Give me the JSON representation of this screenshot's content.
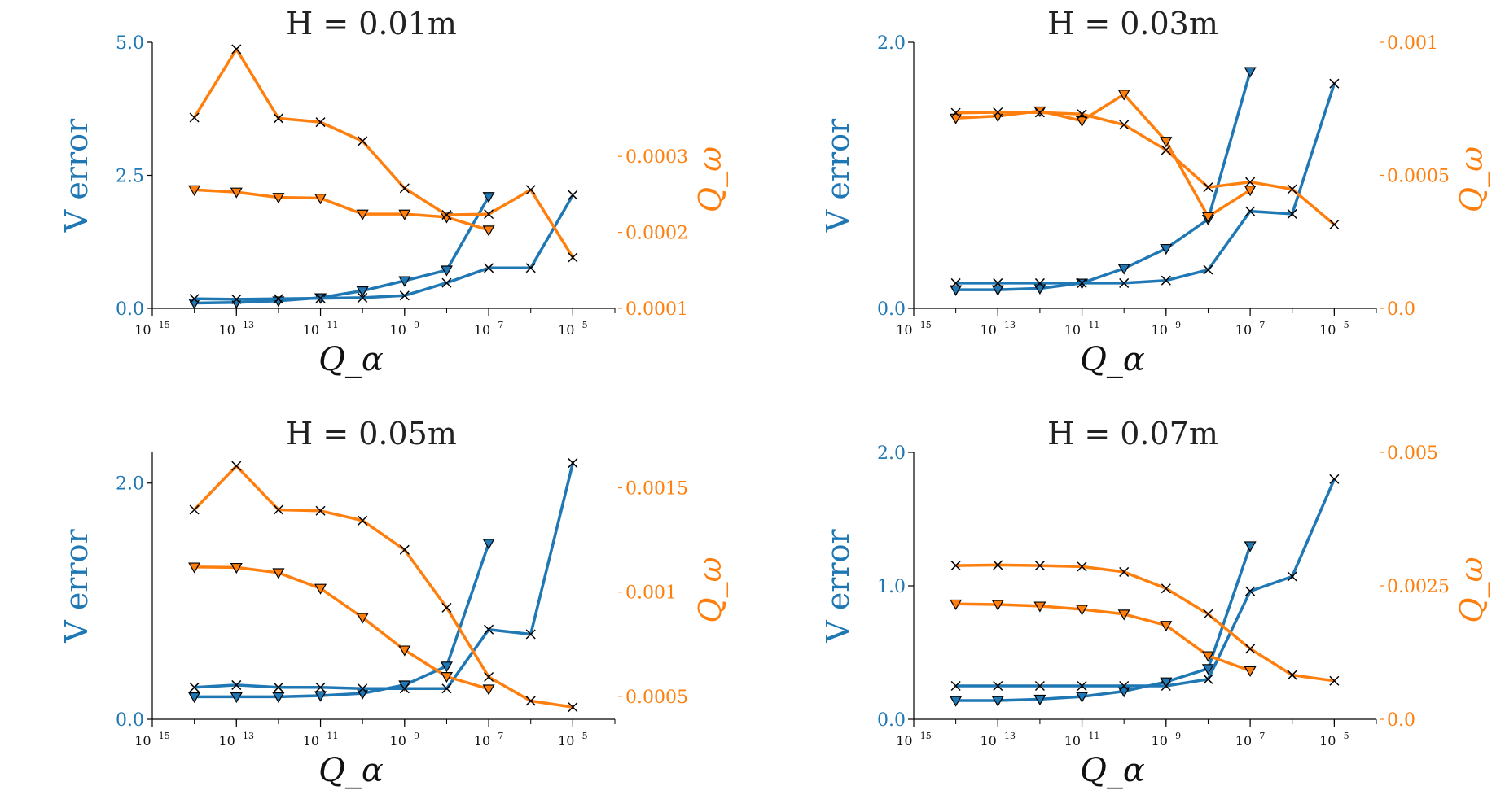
{
  "colors": {
    "left_axis": "#1f77b4",
    "right_axis": "#ff7f0e",
    "marker_edge": "#000000"
  },
  "chart_data": [
    {
      "type": "line",
      "title": "H = 0.01m",
      "xlabel": "Q_α",
      "ylabel": "V error",
      "ylabel_right": "Q_ω",
      "xscale": "log",
      "xlim": [
        1e-15,
        0.0001
      ],
      "xticks": [
        {
          "base": "10",
          "exp": "−15"
        },
        {
          "base": "10",
          "exp": "−13"
        },
        {
          "base": "10",
          "exp": "−11"
        },
        {
          "base": "10",
          "exp": "−9"
        },
        {
          "base": "10",
          "exp": "−7"
        },
        {
          "base": "10",
          "exp": "−5"
        }
      ],
      "ylim": [
        0,
        5.0
      ],
      "yticks": [
        "0.0",
        "2.5",
        "5.0"
      ],
      "ylim_right": [
        0.0001,
        0.00045
      ],
      "yticks_right": [
        "0.0001",
        "0.0002",
        "0.0003"
      ],
      "series": [
        {
          "axis": "left",
          "marker": "triangle",
          "x": [
            1e-14,
            1e-13,
            1e-12,
            1e-11,
            1e-10,
            1e-09,
            1e-08,
            1e-07
          ],
          "y": [
            0.1,
            0.11,
            0.14,
            0.2,
            0.33,
            0.52,
            0.72,
            2.1
          ]
        },
        {
          "axis": "left",
          "marker": "x",
          "x": [
            1e-14,
            1e-13,
            1e-12,
            1e-11,
            1e-10,
            1e-09,
            1e-08,
            1e-07,
            1e-06,
            1e-05
          ],
          "y": [
            0.18,
            0.17,
            0.18,
            0.19,
            0.2,
            0.24,
            0.48,
            0.76,
            0.76,
            2.13
          ]
        },
        {
          "axis": "right",
          "marker": "triangle",
          "x": [
            1e-14,
            1e-13,
            1e-12,
            1e-11,
            1e-10,
            1e-09,
            1e-08,
            1e-07
          ],
          "y": [
            0.000256,
            0.000253,
            0.000246,
            0.000245,
            0.000224,
            0.000224,
            0.00022,
            0.000203
          ]
        },
        {
          "axis": "right",
          "marker": "x",
          "x": [
            1e-14,
            1e-13,
            1e-12,
            1e-11,
            1e-10,
            1e-09,
            1e-08,
            1e-07,
            1e-06,
            1e-05
          ],
          "y": [
            0.000351,
            0.000441,
            0.00035,
            0.000345,
            0.00032,
            0.000258,
            0.000223,
            0.000224,
            0.000256,
            0.000167
          ]
        }
      ]
    },
    {
      "type": "line",
      "title": "H = 0.03m",
      "xlabel": "Q_α",
      "ylabel": "V error",
      "ylabel_right": "Q_ω",
      "xscale": "log",
      "xlim": [
        1e-15,
        0.0001
      ],
      "xticks": [
        {
          "base": "10",
          "exp": "−15"
        },
        {
          "base": "10",
          "exp": "−13"
        },
        {
          "base": "10",
          "exp": "−11"
        },
        {
          "base": "10",
          "exp": "−9"
        },
        {
          "base": "10",
          "exp": "−7"
        },
        {
          "base": "10",
          "exp": "−5"
        }
      ],
      "ylim": [
        0,
        2.0
      ],
      "yticks": [
        "0.0",
        "2.0"
      ],
      "ylim_right": [
        0,
        0.001
      ],
      "yticks_right": [
        "0.0",
        "0.0005",
        "0.001"
      ],
      "series": [
        {
          "axis": "left",
          "marker": "triangle",
          "x": [
            1e-14,
            1e-13,
            1e-12,
            1e-11,
            1e-10,
            1e-09,
            1e-08,
            1e-07
          ],
          "y": [
            0.14,
            0.14,
            0.15,
            0.19,
            0.3,
            0.45,
            0.67,
            1.78
          ]
        },
        {
          "axis": "left",
          "marker": "x",
          "x": [
            1e-14,
            1e-13,
            1e-12,
            1e-11,
            1e-10,
            1e-09,
            1e-08,
            1e-07,
            1e-06,
            1e-05
          ],
          "y": [
            0.19,
            0.19,
            0.19,
            0.19,
            0.19,
            0.21,
            0.29,
            0.73,
            0.71,
            1.69
          ]
        },
        {
          "axis": "right",
          "marker": "triangle",
          "x": [
            1e-14,
            1e-13,
            1e-12,
            1e-11,
            1e-10,
            1e-09,
            1e-08,
            1e-07
          ],
          "y": [
            0.000715,
            0.000723,
            0.000742,
            0.000705,
            0.000805,
            0.000628,
            0.000345,
            0.000445
          ]
        },
        {
          "axis": "right",
          "marker": "x",
          "x": [
            1e-14,
            1e-13,
            1e-12,
            1e-11,
            1e-10,
            1e-09,
            1e-08,
            1e-07,
            1e-06,
            1e-05
          ],
          "y": [
            0.000735,
            0.000737,
            0.000736,
            0.00073,
            0.00069,
            0.000595,
            0.000455,
            0.000475,
            0.000448,
            0.000315
          ]
        }
      ]
    },
    {
      "type": "line",
      "title": "H = 0.05m",
      "xlabel": "Q_α",
      "ylabel": "V error",
      "ylabel_right": "Q_ω",
      "xscale": "log",
      "xlim": [
        1e-15,
        0.0001
      ],
      "xticks": [
        {
          "base": "10",
          "exp": "−15"
        },
        {
          "base": "10",
          "exp": "−13"
        },
        {
          "base": "10",
          "exp": "−11"
        },
        {
          "base": "10",
          "exp": "−9"
        },
        {
          "base": "10",
          "exp": "−7"
        },
        {
          "base": "10",
          "exp": "−5"
        }
      ],
      "ylim": [
        0,
        2.26
      ],
      "yticks": [
        "0.0",
        "2.0"
      ],
      "ylim_right": [
        0.00039,
        0.00167
      ],
      "yticks_right": [
        "0.0005",
        "0.001",
        "0.0015"
      ],
      "series": [
        {
          "axis": "left",
          "marker": "triangle",
          "x": [
            1e-14,
            1e-13,
            1e-12,
            1e-11,
            1e-10,
            1e-09,
            1e-08,
            1e-07
          ],
          "y": [
            0.19,
            0.19,
            0.19,
            0.2,
            0.22,
            0.29,
            0.45,
            1.49
          ]
        },
        {
          "axis": "left",
          "marker": "x",
          "x": [
            1e-14,
            1e-13,
            1e-12,
            1e-11,
            1e-10,
            1e-09,
            1e-08,
            1e-07,
            1e-06,
            1e-05
          ],
          "y": [
            0.27,
            0.29,
            0.27,
            0.27,
            0.26,
            0.26,
            0.26,
            0.76,
            0.72,
            2.17
          ]
        },
        {
          "axis": "right",
          "marker": "triangle",
          "x": [
            1e-14,
            1e-13,
            1e-12,
            1e-11,
            1e-10,
            1e-09,
            1e-08,
            1e-07
          ],
          "y": [
            0.00112,
            0.001118,
            0.001093,
            0.001018,
            0.000878,
            0.000722,
            0.000595,
            0.000535
          ]
        },
        {
          "axis": "right",
          "marker": "x",
          "x": [
            1e-14,
            1e-13,
            1e-12,
            1e-11,
            1e-10,
            1e-09,
            1e-08,
            1e-07,
            1e-06,
            1e-05
          ],
          "y": [
            0.001395,
            0.001605,
            0.001395,
            0.00139,
            0.001343,
            0.001203,
            0.000925,
            0.000593,
            0.000478,
            0.000448
          ]
        }
      ]
    },
    {
      "type": "line",
      "title": "H = 0.07m",
      "xlabel": "Q_α",
      "ylabel": "V error",
      "ylabel_right": "Q_ω",
      "xscale": "log",
      "xlim": [
        1e-15,
        0.0001
      ],
      "xticks": [
        {
          "base": "10",
          "exp": "−15"
        },
        {
          "base": "10",
          "exp": "−13"
        },
        {
          "base": "10",
          "exp": "−11"
        },
        {
          "base": "10",
          "exp": "−9"
        },
        {
          "base": "10",
          "exp": "−7"
        },
        {
          "base": "10",
          "exp": "−5"
        }
      ],
      "ylim": [
        0,
        2.0
      ],
      "yticks": [
        "0.0",
        "1.0",
        "2.0"
      ],
      "ylim_right": [
        0,
        0.005
      ],
      "yticks_right": [
        "0.0",
        "0.0025",
        "0.005"
      ],
      "series": [
        {
          "axis": "left",
          "marker": "triangle",
          "x": [
            1e-14,
            1e-13,
            1e-12,
            1e-11,
            1e-10,
            1e-09,
            1e-08,
            1e-07
          ],
          "y": [
            0.14,
            0.14,
            0.15,
            0.17,
            0.21,
            0.28,
            0.38,
            1.3
          ]
        },
        {
          "axis": "left",
          "marker": "x",
          "x": [
            1e-14,
            1e-13,
            1e-12,
            1e-11,
            1e-10,
            1e-09,
            1e-08,
            1e-07,
            1e-06,
            1e-05
          ],
          "y": [
            0.25,
            0.25,
            0.25,
            0.25,
            0.25,
            0.25,
            0.3,
            0.96,
            1.07,
            1.8
          ]
        },
        {
          "axis": "right",
          "marker": "triangle",
          "x": [
            1e-14,
            1e-13,
            1e-12,
            1e-11,
            1e-10,
            1e-09,
            1e-08,
            1e-07
          ],
          "y": [
            0.00216,
            0.00215,
            0.00212,
            0.00206,
            0.00197,
            0.00176,
            0.00119,
            0.00091
          ]
        },
        {
          "axis": "right",
          "marker": "x",
          "x": [
            1e-14,
            1e-13,
            1e-12,
            1e-11,
            1e-10,
            1e-09,
            1e-08,
            1e-07,
            1e-06,
            1e-05
          ],
          "y": [
            0.00288,
            0.00289,
            0.00288,
            0.00286,
            0.00276,
            0.00245,
            0.00197,
            0.00132,
            0.00083,
            0.00072
          ]
        }
      ]
    }
  ]
}
